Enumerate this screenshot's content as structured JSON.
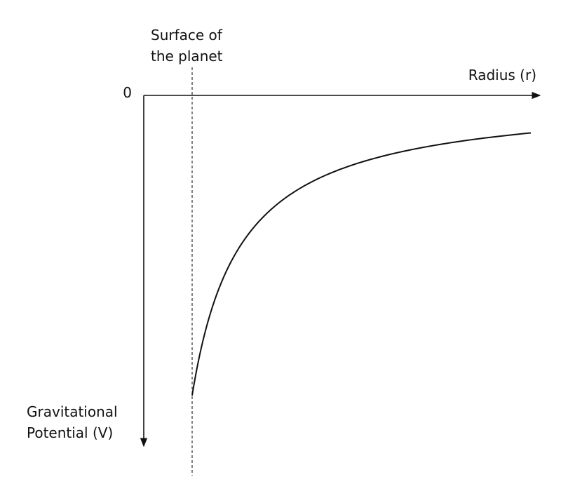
{
  "chart_data": {
    "type": "line",
    "title": "",
    "xlabel": "Radius (r)",
    "ylabel_lines": [
      "Gravitational",
      "Potential (V)"
    ],
    "origin_label": "0",
    "y_axis_direction": "down",
    "annotation": {
      "label_lines": [
        "Surface of",
        "the planet"
      ],
      "style": "dashed-vertical-line",
      "x": 1
    },
    "series": [
      {
        "relation": "V proportional to -1/r",
        "x": [
          1,
          1.05,
          1.1,
          1.2,
          1.4,
          1.6,
          2,
          2.5,
          3,
          4,
          5,
          6,
          7,
          8
        ],
        "y": [
          -1,
          -0.952,
          -0.909,
          -0.833,
          -0.714,
          -0.625,
          -0.5,
          -0.4,
          -0.333,
          -0.25,
          -0.2,
          -0.167,
          -0.143,
          -0.125
        ]
      }
    ],
    "xlim": [
      0,
      8
    ],
    "ylim": [
      -1.15,
      0
    ],
    "grid": false,
    "legend": "none",
    "colors": {
      "axis": "#111111",
      "curve": "#111111",
      "dashed": "#333333"
    }
  }
}
